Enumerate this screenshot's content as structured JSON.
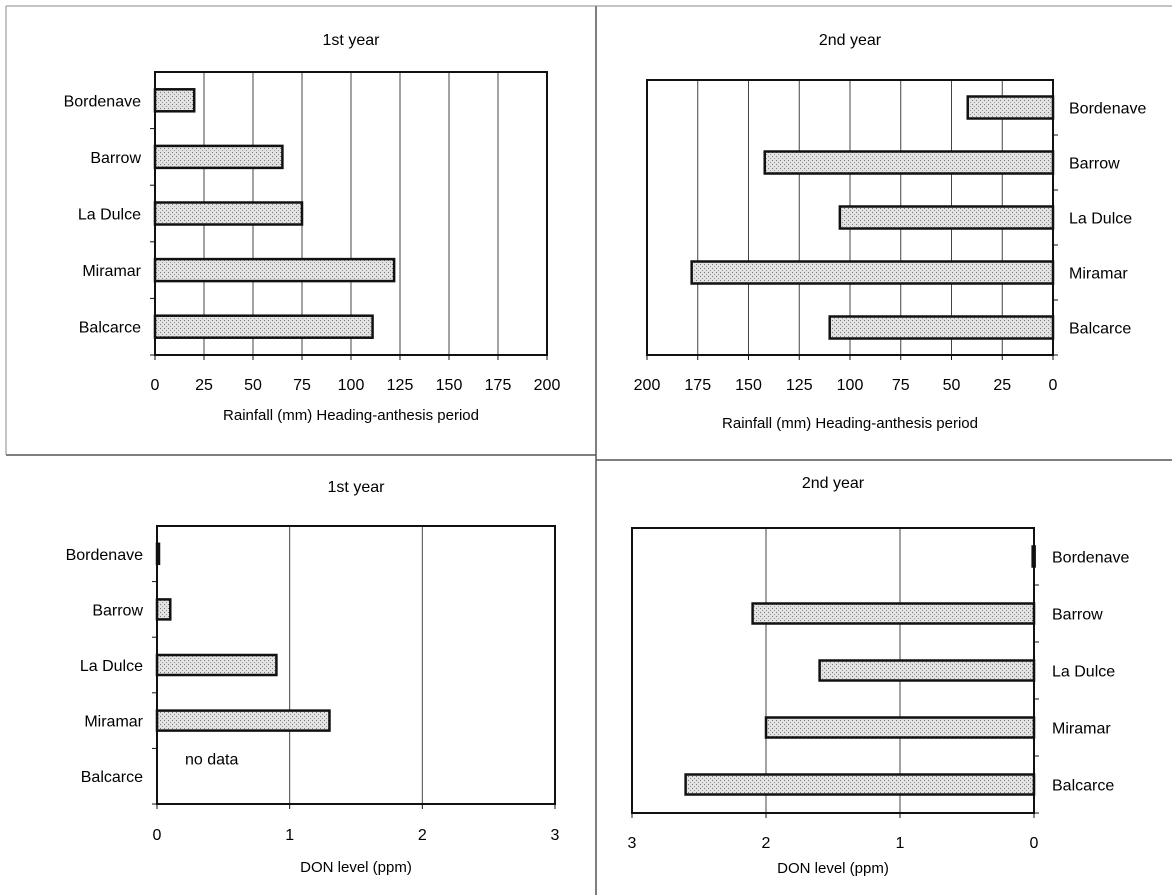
{
  "chart_data": [
    {
      "type": "bar",
      "orientation": "horizontal",
      "title": "1st year",
      "xlabel": "Rainfall (mm) Heading-anthesis period",
      "ylabel": "",
      "categories": [
        "Bordenave",
        "Barrow",
        "La Dulce",
        "Miramar",
        "Balcarce"
      ],
      "values": [
        20,
        65,
        75,
        122,
        111
      ],
      "xlim": [
        0,
        200
      ],
      "ticks": [
        0,
        25,
        50,
        75,
        100,
        125,
        150,
        175,
        200
      ],
      "x_reversed": false,
      "category_labels_side": "left",
      "grid": true,
      "annotations": []
    },
    {
      "type": "bar",
      "orientation": "horizontal",
      "title": "2nd year",
      "xlabel": "Rainfall (mm) Heading-anthesis period",
      "ylabel": "",
      "categories": [
        "Bordenave",
        "Barrow",
        "La Dulce",
        "Miramar",
        "Balcarce"
      ],
      "values": [
        42,
        142,
        105,
        178,
        110
      ],
      "xlim": [
        0,
        200
      ],
      "ticks": [
        200,
        175,
        150,
        125,
        100,
        75,
        50,
        25,
        0
      ],
      "x_reversed": true,
      "category_labels_side": "right",
      "grid": true,
      "annotations": []
    },
    {
      "type": "bar",
      "orientation": "horizontal",
      "title": "1st year",
      "xlabel": "DON level (ppm)",
      "ylabel": "",
      "categories": [
        "Bordenave",
        "Barrow",
        "La Dulce",
        "Miramar",
        "Balcarce"
      ],
      "values": [
        0.01,
        0.1,
        0.9,
        1.3,
        null
      ],
      "xlim": [
        0,
        3
      ],
      "ticks": [
        0,
        1,
        2,
        3
      ],
      "x_reversed": false,
      "category_labels_side": "left",
      "grid": true,
      "annotations": [
        "no data"
      ]
    },
    {
      "type": "bar",
      "orientation": "horizontal",
      "title": "2nd year",
      "xlabel": "DON level (ppm)",
      "ylabel": "",
      "categories": [
        "Bordenave",
        "Barrow",
        "La Dulce",
        "Miramar",
        "Balcarce"
      ],
      "values": [
        0.01,
        2.1,
        1.6,
        2.0,
        2.6
      ],
      "xlim": [
        0,
        3
      ],
      "ticks": [
        3,
        2,
        1,
        0
      ],
      "x_reversed": true,
      "category_labels_side": "right",
      "grid": true,
      "annotations": []
    }
  ],
  "colors": {
    "bar_fill": "#d6d6d6",
    "bar_stroke": "#111111",
    "grid": "#444444",
    "frame": "#111111"
  }
}
